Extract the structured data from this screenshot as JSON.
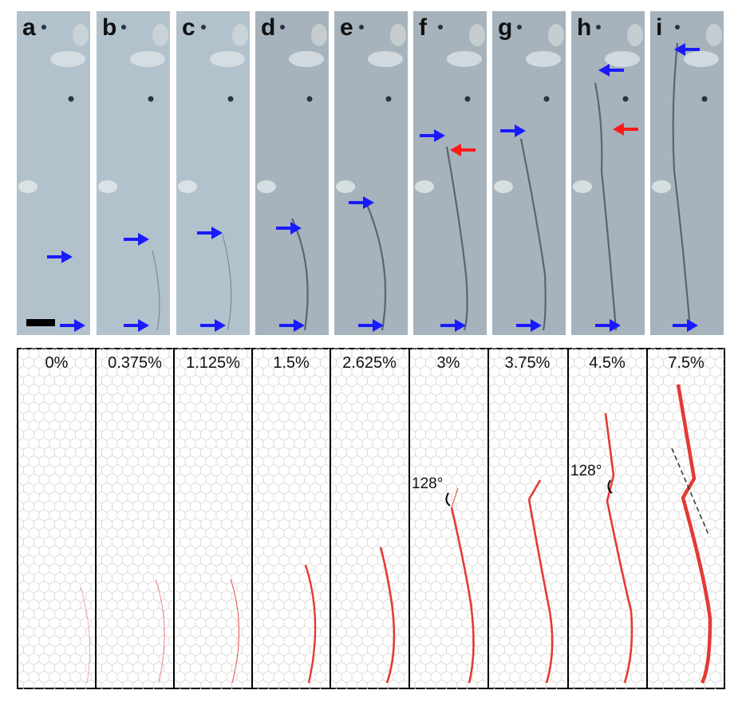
{
  "figure": {
    "panels": [
      {
        "letter": "a",
        "strain": "0%"
      },
      {
        "letter": "b",
        "strain": "0.375%"
      },
      {
        "letter": "c",
        "strain": "1.125%"
      },
      {
        "letter": "d",
        "strain": "1.5%"
      },
      {
        "letter": "e",
        "strain": "2.625%"
      },
      {
        "letter": "f",
        "strain": "3%",
        "angle": "128°"
      },
      {
        "letter": "g",
        "strain": "3.75%"
      },
      {
        "letter": "h",
        "strain": "4.5%",
        "angle": "128°"
      },
      {
        "letter": "i",
        "strain": "7.5%"
      }
    ]
  },
  "colors": {
    "arrow_blue": "#1a1aff",
    "arrow_red": "#ff1a1a",
    "crack_red": "#e53935",
    "photo_bg": "#aebfcc",
    "lattice": "#d5d5d5"
  }
}
